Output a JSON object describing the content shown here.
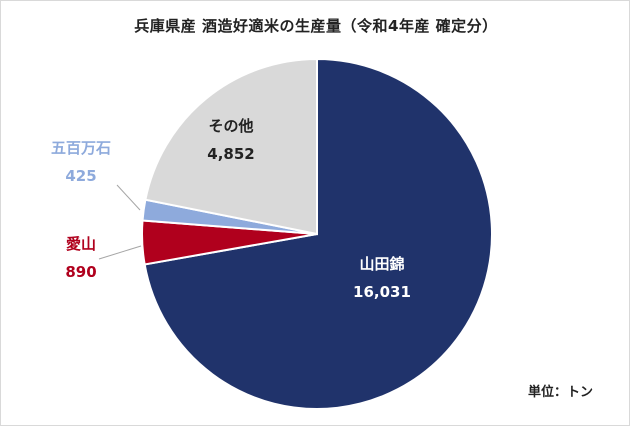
{
  "chart_data": {
    "type": "pie",
    "title": "兵庫県産 酒造好適米の生産量（令和4年産 確定分）",
    "unit_label": "単位：トン",
    "slices": [
      {
        "name": "山田錦",
        "value": 16031,
        "display_value": "16,031",
        "color": "#20336b",
        "label_color": "#ffffff"
      },
      {
        "name": "愛山",
        "value": 890,
        "display_value": "890",
        "color": "#b0001d",
        "label_color": "#b0001d"
      },
      {
        "name": "五百万石",
        "value": 425,
        "display_value": "425",
        "color": "#8eaadc",
        "label_color": "#8eaadc"
      },
      {
        "name": "その他",
        "value": 4852,
        "display_value": "4,852",
        "color": "#d9d9d9",
        "label_color": "#222222"
      }
    ]
  }
}
